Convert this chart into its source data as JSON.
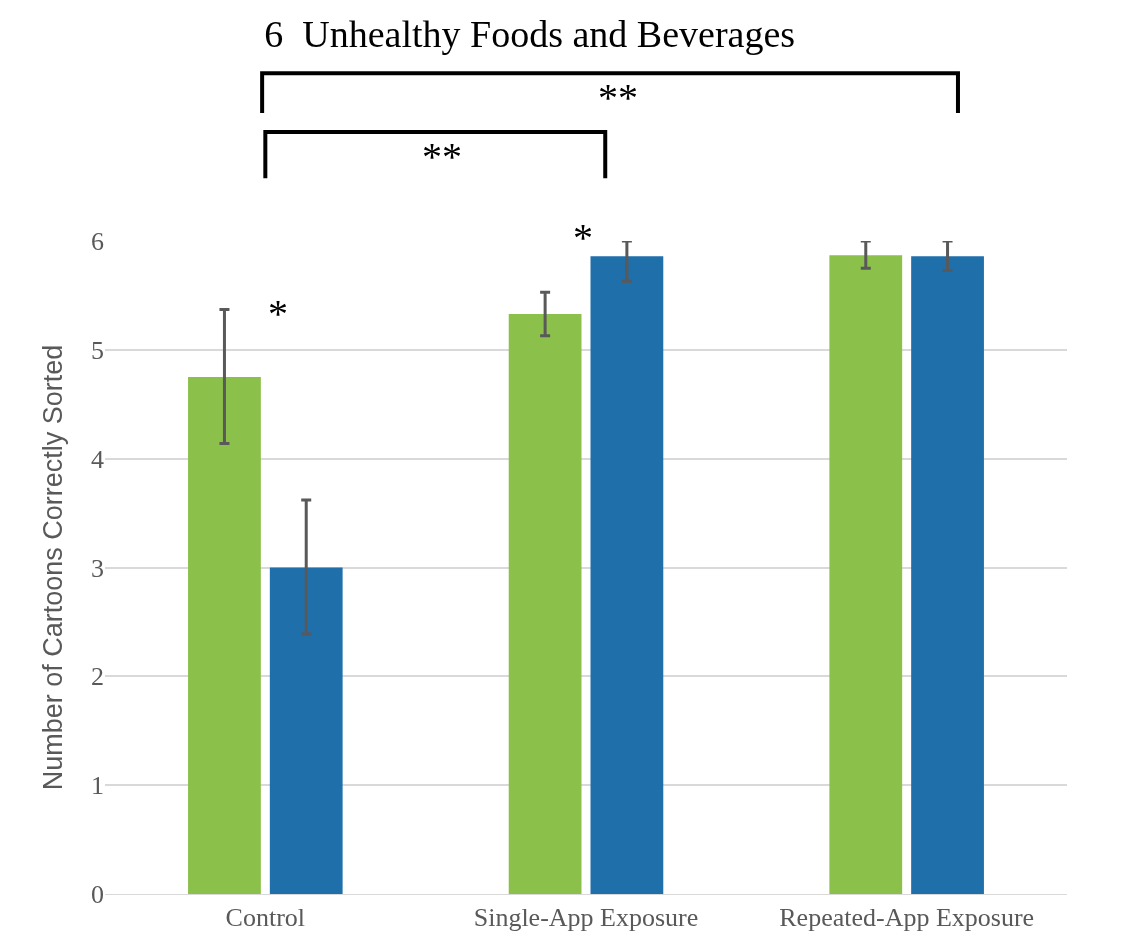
{
  "chart_data": {
    "type": "bar",
    "title": "6  Unhealthy Foods and Beverages",
    "ylabel": "Number of Cartoons Correctly Sorted",
    "categories": [
      "Control",
      "Single-App Exposure",
      "Repeated-App Exposure"
    ],
    "series": [
      {
        "color": "#8bc04a",
        "values": [
          4.75,
          5.33,
          5.87
        ],
        "errors": [
          [
            4.14,
            5.37
          ],
          [
            5.13,
            5.53
          ],
          [
            5.75,
            6
          ]
        ]
      },
      {
        "color": "#1f6fab",
        "values": [
          3.0,
          5.86,
          5.86
        ],
        "errors": [
          [
            2.39,
            3.62
          ],
          [
            5.63,
            6
          ],
          [
            5.73,
            6
          ]
        ]
      }
    ],
    "ylim": [
      0,
      6
    ],
    "yticks": [
      0,
      1,
      2,
      3,
      4,
      5,
      6
    ],
    "grid": "y",
    "annotations": [
      "*",
      "*",
      "**",
      "**"
    ]
  }
}
